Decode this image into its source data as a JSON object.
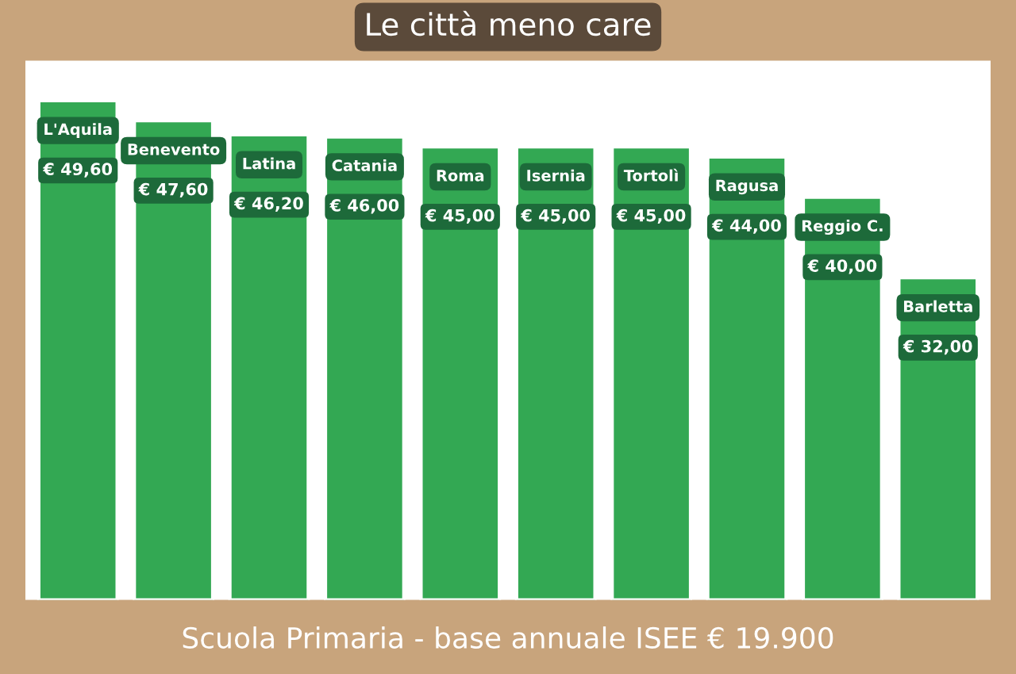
{
  "chart_data": {
    "type": "bar",
    "title": "Le città meno care",
    "subtitle": "Scuola Primaria - base annuale ISEE € 19.900",
    "categories": [
      "L'Aquila",
      "Benevento",
      "Latina",
      "Catania",
      "Roma",
      "Isernia",
      "Tortolì",
      "Ragusa",
      "Reggio C.",
      "Barletta"
    ],
    "values": [
      49.6,
      47.6,
      46.2,
      46.0,
      45.0,
      45.0,
      45.0,
      44.0,
      40.0,
      32.0
    ],
    "value_labels": [
      "€ 49,60",
      "€ 47,60",
      "€ 46,20",
      "€ 46,00",
      "€ 45,00",
      "€ 45,00",
      "€ 45,00",
      "€ 44,00",
      "€ 40,00",
      "€ 32,00"
    ],
    "color": "#33a853"
  }
}
